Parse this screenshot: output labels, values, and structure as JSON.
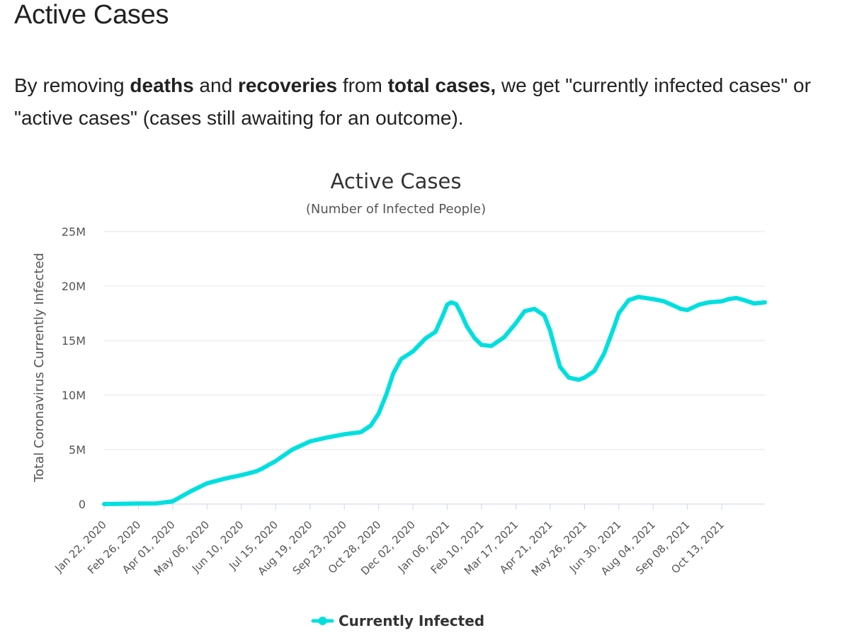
{
  "page": {
    "heading": "Active Cases",
    "intro": {
      "t1": "By removing ",
      "b1": "deaths",
      "t2": " and ",
      "b2": "recoveries",
      "t3": " from ",
      "b3": "total cases,",
      "t4": " we get \"currently infected cases\" or \"active cases\" (cases still awaiting for an outcome)."
    }
  },
  "chart_data": {
    "type": "line",
    "title": "Active Cases",
    "subtitle": "(Number of Infected People)",
    "ylabel": "Total Coronavirus Currently Infected",
    "xlabel": "",
    "ylim": [
      0,
      25000000
    ],
    "yticks": [
      0,
      5000000,
      10000000,
      15000000,
      20000000,
      25000000
    ],
    "ytick_labels": [
      "0",
      "5M",
      "10M",
      "15M",
      "20M",
      "25M"
    ],
    "xlim": [
      "2020-01-22",
      "2021-11-26"
    ],
    "xtick_labels": [
      "Jan 22, 2020",
      "Feb 26, 2020",
      "Apr 01, 2020",
      "May 06, 2020",
      "Jun 10, 2020",
      "Jul 15, 2020",
      "Aug 19, 2020",
      "Sep 23, 2020",
      "Oct 28, 2020",
      "Dec 02, 2020",
      "Jan 06, 2021",
      "Feb 10, 2021",
      "Mar 17, 2021",
      "Apr 21, 2021",
      "May 26, 2021",
      "Jun 30, 2021",
      "Aug 04, 2021",
      "Sep 08, 2021",
      "Oct 13, 2021"
    ],
    "grid": true,
    "legend_position": "bottom-center",
    "colors": {
      "series": "#00dfdf",
      "grid": "#e6e6e6",
      "axis": "#ccd6eb"
    },
    "series": [
      {
        "name": "Currently Infected",
        "x": [
          "2020-01-22",
          "2020-02-26",
          "2020-03-15",
          "2020-04-01",
          "2020-04-20",
          "2020-05-06",
          "2020-05-25",
          "2020-06-10",
          "2020-06-25",
          "2020-07-01",
          "2020-07-15",
          "2020-08-01",
          "2020-08-19",
          "2020-09-05",
          "2020-09-23",
          "2020-10-10",
          "2020-10-20",
          "2020-10-28",
          "2020-11-05",
          "2020-11-12",
          "2020-11-20",
          "2020-12-02",
          "2020-12-15",
          "2020-12-25",
          "2021-01-01",
          "2021-01-06",
          "2021-01-10",
          "2021-01-15",
          "2021-01-20",
          "2021-01-26",
          "2021-02-03",
          "2021-02-10",
          "2021-02-20",
          "2021-03-05",
          "2021-03-17",
          "2021-03-26",
          "2021-04-05",
          "2021-04-15",
          "2021-04-21",
          "2021-04-26",
          "2021-05-01",
          "2021-05-10",
          "2021-05-20",
          "2021-05-26",
          "2021-06-05",
          "2021-06-15",
          "2021-06-25",
          "2021-06-30",
          "2021-07-10",
          "2021-07-20",
          "2021-08-04",
          "2021-08-15",
          "2021-08-25",
          "2021-09-01",
          "2021-09-08",
          "2021-09-20",
          "2021-09-30",
          "2021-10-13",
          "2021-10-20",
          "2021-10-28",
          "2021-11-05",
          "2021-11-15",
          "2021-11-26"
        ],
        "y": [
          300,
          50000,
          60000,
          250000,
          1200000,
          1900000,
          2350000,
          2650000,
          3000000,
          3250000,
          3950000,
          5000000,
          5750000,
          6100000,
          6400000,
          6600000,
          7200000,
          8300000,
          10100000,
          12000000,
          13300000,
          14000000,
          15200000,
          15800000,
          17200000,
          18300000,
          18500000,
          18350000,
          17500000,
          16300000,
          15200000,
          14600000,
          14500000,
          15300000,
          16600000,
          17700000,
          17900000,
          17300000,
          15900000,
          14200000,
          12600000,
          11600000,
          11400000,
          11600000,
          12200000,
          13800000,
          16200000,
          17500000,
          18700000,
          19000000,
          18800000,
          18600000,
          18200000,
          17900000,
          17800000,
          18300000,
          18500000,
          18600000,
          18800000,
          18900000,
          18700000,
          18400000,
          18500000
        ]
      }
    ]
  }
}
